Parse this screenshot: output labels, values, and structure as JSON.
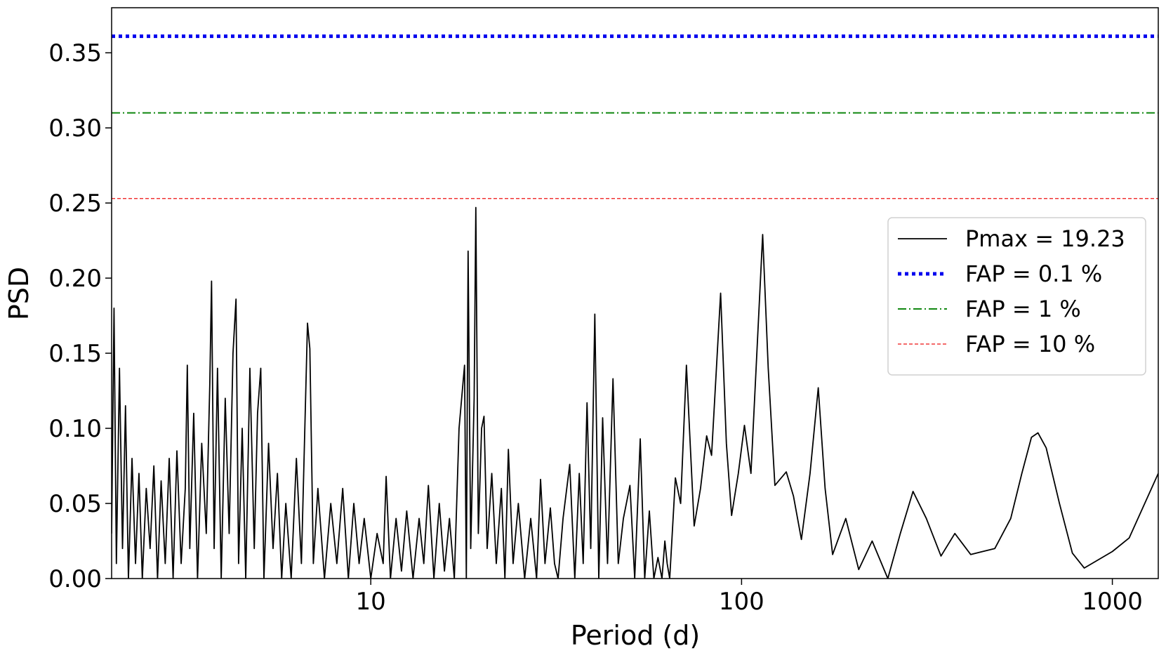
{
  "chart_data": {
    "type": "line",
    "x_label": "Period (d)",
    "y_label": "PSD",
    "x_scale": "log",
    "xlim": [
      2,
      1330
    ],
    "ylim": [
      0,
      0.38
    ],
    "xticks": [
      10,
      100,
      1000
    ],
    "yticks": [
      {
        "value": 0,
        "label": "0.00"
      },
      0.05,
      {
        "value": 0.1,
        "label": "0.10"
      },
      0.15,
      {
        "value": 0.2,
        "label": "0.20"
      },
      0.25,
      {
        "value": 0.3,
        "label": "0.30"
      },
      0.35
    ],
    "legend_position": "right",
    "x": [
      2.0,
      2.03,
      2.06,
      2.1,
      2.14,
      2.18,
      2.22,
      2.27,
      2.32,
      2.37,
      2.42,
      2.48,
      2.54,
      2.6,
      2.66,
      2.72,
      2.79,
      2.86,
      2.93,
      3.0,
      3.08,
      3.16,
      3.2,
      3.25,
      3.33,
      3.41,
      3.5,
      3.6,
      3.68,
      3.72,
      3.78,
      3.86,
      3.95,
      4.05,
      4.15,
      4.25,
      4.33,
      4.4,
      4.5,
      4.6,
      4.72,
      4.85,
      4.95,
      5.05,
      5.15,
      5.3,
      5.45,
      5.6,
      5.75,
      5.9,
      6.1,
      6.3,
      6.5,
      6.75,
      6.85,
      7.0,
      7.2,
      7.5,
      7.8,
      8.1,
      8.4,
      8.7,
      9.0,
      9.3,
      9.6,
      10.0,
      10.4,
      10.8,
      11.0,
      11.3,
      11.7,
      12.1,
      12.5,
      13.0,
      13.5,
      13.9,
      14.3,
      14.8,
      15.3,
      15.8,
      16.3,
      16.8,
      17.3,
      17.9,
      18.1,
      18.3,
      18.6,
      19.0,
      19.2,
      19.5,
      19.9,
      20.2,
      20.6,
      21.2,
      21.8,
      22.5,
      23.0,
      23.5,
      24.2,
      25.0,
      26.0,
      27.0,
      28.0,
      28.7,
      29.5,
      30.5,
      31.3,
      32.0,
      33.0,
      34.4,
      35.5,
      36.5,
      37.4,
      38.3,
      39.2,
      40.2,
      41.2,
      42.2,
      43.5,
      45.0,
      46.5,
      48.0,
      50.0,
      51.5,
      53.3,
      54.8,
      56.4,
      58.0,
      59.5,
      61.0,
      62.1,
      63.0,
      64.0,
      66.3,
      68.5,
      71.0,
      74.5,
      77.5,
      80.5,
      83.0,
      87.8,
      91.0,
      94.0,
      98.0,
      101.8,
      106.0,
      114.0,
      118,
      123.0,
      132.0,
      138,
      145.0,
      153,
      161.0,
      168,
      176.0,
      191.0,
      207.0,
      225.0,
      248.0,
      268,
      290.0,
      315,
      345.0,
      376.0,
      415.0,
      482.0,
      532.0,
      570,
      605.0,
      630.0,
      663.0,
      720,
      780.0,
      840.0,
      1000.0,
      1110.0,
      1330.0
    ],
    "series": [
      {
        "name": "Pmax = 19.23",
        "color": "#000000",
        "values": [
          0.03,
          0.18,
          0.01,
          0.14,
          0.02,
          0.115,
          0.0,
          0.08,
          0.01,
          0.07,
          0.0,
          0.06,
          0.02,
          0.075,
          0.0,
          0.065,
          0.01,
          0.08,
          0.0,
          0.085,
          0.01,
          0.06,
          0.142,
          0.02,
          0.11,
          0.0,
          0.09,
          0.03,
          0.13,
          0.198,
          0.02,
          0.14,
          0.0,
          0.12,
          0.03,
          0.15,
          0.186,
          0.01,
          0.1,
          0.0,
          0.14,
          0.02,
          0.11,
          0.14,
          0.0,
          0.09,
          0.02,
          0.07,
          0.0,
          0.05,
          0.0,
          0.08,
          0.01,
          0.17,
          0.153,
          0.01,
          0.06,
          0.0,
          0.05,
          0.01,
          0.06,
          0.0,
          0.05,
          0.01,
          0.04,
          0.0,
          0.03,
          0.01,
          0.068,
          0.0,
          0.04,
          0.005,
          0.045,
          0.0,
          0.04,
          0.01,
          0.062,
          0.0,
          0.05,
          0.005,
          0.04,
          0.0,
          0.1,
          0.142,
          0.0,
          0.218,
          0.02,
          0.12,
          0.247,
          0.03,
          0.1,
          0.108,
          0.02,
          0.07,
          0.01,
          0.06,
          0.0,
          0.086,
          0.01,
          0.05,
          0.0,
          0.04,
          0.0,
          0.066,
          0.01,
          0.047,
          0.01,
          0.0,
          0.04,
          0.076,
          0.0,
          0.07,
          0.01,
          0.117,
          0.02,
          0.176,
          0.0,
          0.107,
          0.01,
          0.133,
          0.01,
          0.04,
          0.062,
          0.0,
          0.093,
          0.0,
          0.045,
          0.0,
          0.014,
          0.0,
          0.025,
          0.01,
          0.0,
          0.067,
          0.05,
          0.142,
          0.035,
          0.06,
          0.095,
          0.082,
          0.19,
          0.09,
          0.042,
          0.07,
          0.102,
          0.07,
          0.229,
          0.14,
          0.062,
          0.071,
          0.055,
          0.026,
          0.07,
          0.127,
          0.06,
          0.016,
          0.04,
          0.006,
          0.025,
          0.0,
          0.03,
          0.058,
          0.04,
          0.015,
          0.03,
          0.016,
          0.02,
          0.04,
          0.07,
          0.094,
          0.097,
          0.087,
          0.05,
          0.017,
          0.007,
          0.018,
          0.027,
          0.07
        ]
      }
    ],
    "hlines": [
      {
        "name": "FAP = 0.1 %",
        "value": 0.361,
        "color": "#0000ee",
        "style": "dotted"
      },
      {
        "name": "FAP = 1 %",
        "value": 0.31,
        "color": "#118811",
        "style": "dashdot"
      },
      {
        "name": "FAP = 10 %",
        "value": 0.253,
        "color": "#ee1111",
        "style": "dashed"
      }
    ]
  }
}
